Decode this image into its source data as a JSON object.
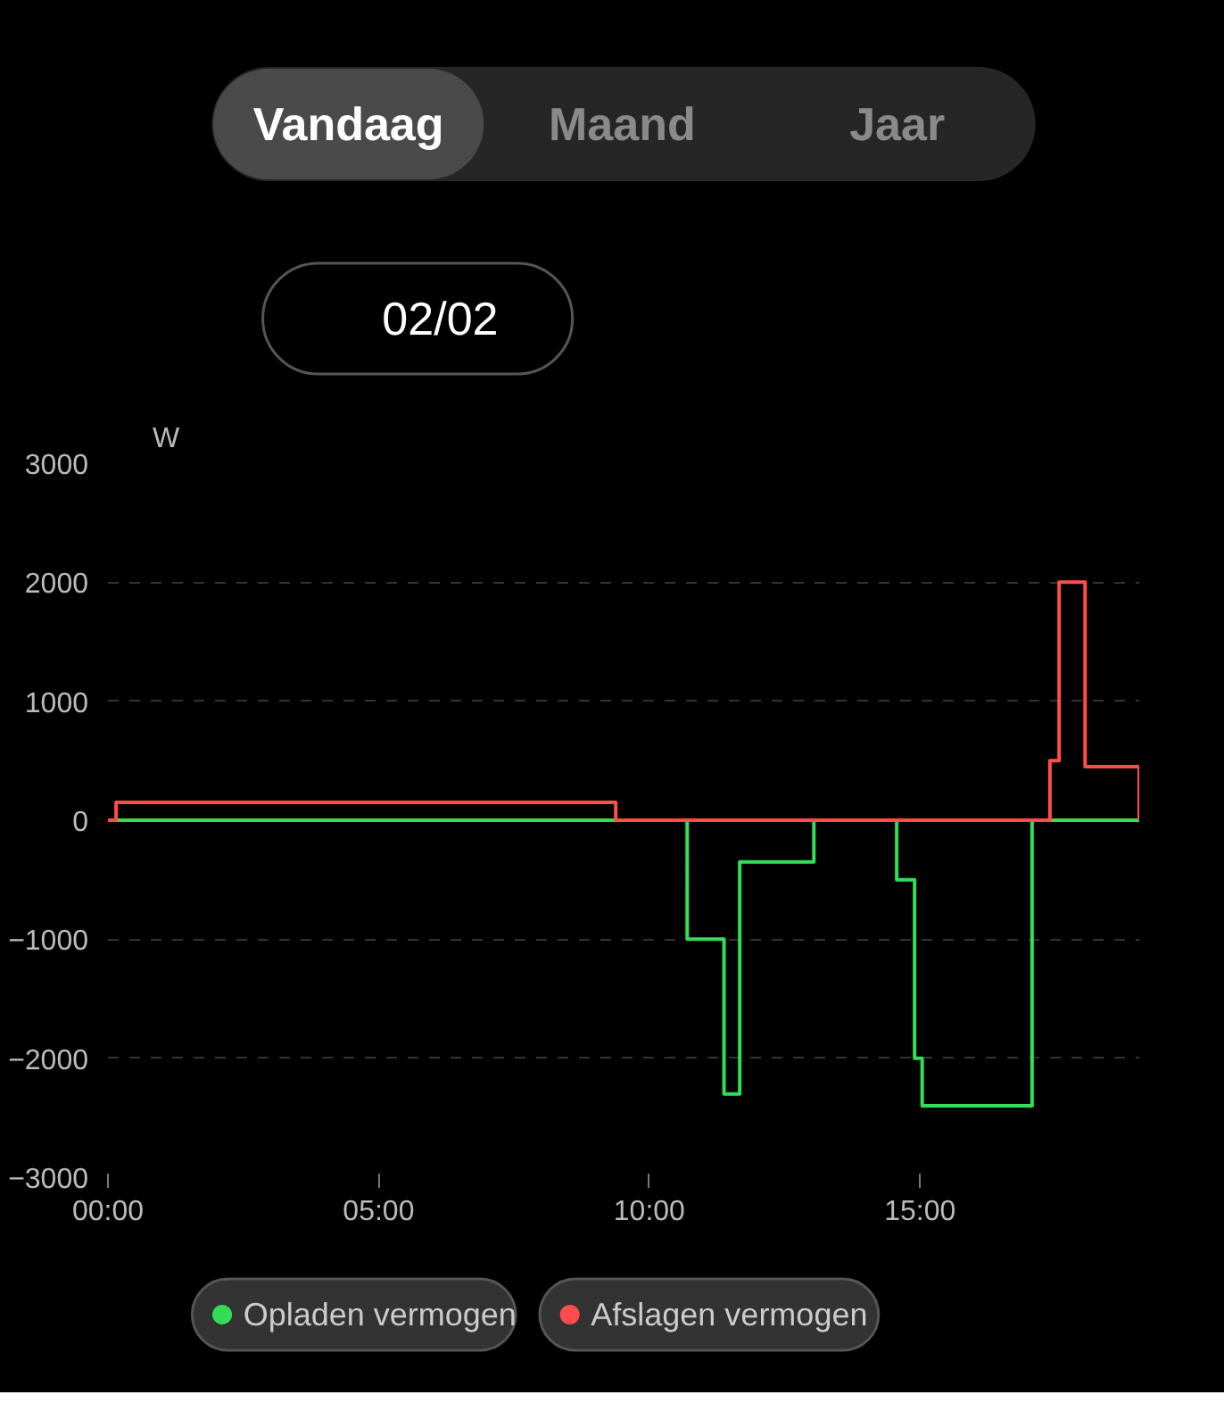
{
  "chart_data": {
    "type": "step",
    "annotations": [
      "Vandaag",
      "Maand",
      "Jaar",
      "02/02"
    ],
    "ylabel": "W",
    "xlim": [
      0,
      19.05
    ],
    "xticks": [
      {
        "value": 0,
        "label": "00:00"
      },
      {
        "value": 5,
        "label": "05:00"
      },
      {
        "value": 10,
        "label": "10:00"
      },
      {
        "value": 15,
        "label": "15:00"
      }
    ],
    "ylim": [
      -3000,
      3000
    ],
    "yticks": [
      -3000,
      -2000,
      -1000,
      0,
      1000,
      2000,
      3000
    ],
    "grid": "y",
    "legend": "bottom",
    "series": [
      {
        "name": "Opladen vermogen",
        "color": "#33dd55",
        "x": [
          0,
          10.7,
          11.38,
          11.67,
          13.04,
          14.57,
          14.9,
          15.04,
          17.07,
          19.05
        ],
        "values": [
          0,
          -1000,
          -2300,
          -350,
          0,
          -500,
          -2000,
          -2400,
          0,
          0
        ]
      },
      {
        "name": "Afslagen vermogen",
        "color": "#ff4d4d",
        "x": [
          0,
          0.15,
          9.38,
          17.4,
          17.57,
          18.05,
          19.05
        ],
        "values": [
          0,
          150,
          0,
          500,
          2000,
          450,
          0
        ]
      }
    ]
  }
}
